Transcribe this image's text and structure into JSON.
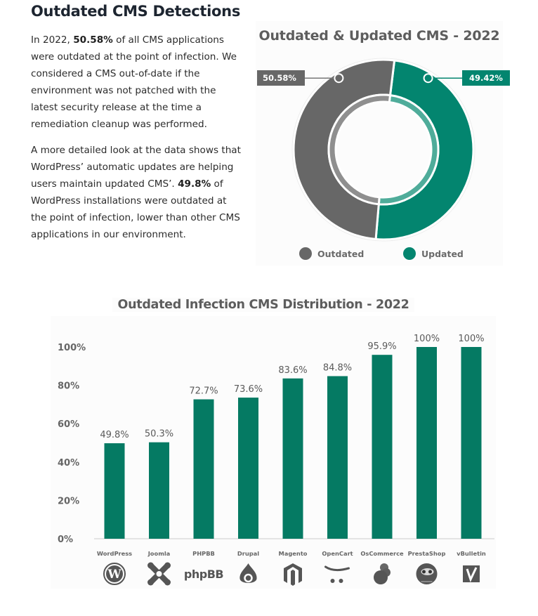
{
  "article": {
    "heading": "Outdated CMS Detections",
    "para1": {
      "pre": "In 2022, ",
      "bold": "50.58%",
      "post": " of all CMS applications were outdated at the point of infection. We considered a CMS out-of-date if the environment was not patched with the latest security release at the time a remediation cleanup was performed."
    },
    "para2": {
      "pre": "A more detailed look at the data shows that WordPress’ automatic updates are helping users maintain updated CMS’. ",
      "bold": "49.8%",
      "post": " of WordPress installations were outdated at the point of infection, lower than other CMS applications in our environment."
    }
  },
  "colors": {
    "outdated": "#676767",
    "outdated_inner": "#8f8f8f",
    "updated": "#03856f",
    "updated_inner": "#4fac9a",
    "bar": "#057a63",
    "axis_text": "#666666"
  },
  "chart_data": [
    {
      "type": "pie",
      "variant": "donut",
      "title": "Outdated & Updated CMS - 2022",
      "labels": [
        "Outdated",
        "Updated"
      ],
      "values": [
        50.58,
        49.42
      ],
      "value_labels": [
        "50.58%",
        "49.42%"
      ],
      "legend": "bottom"
    },
    {
      "type": "bar",
      "title": "Outdated Infection CMS Distribution - 2022",
      "categories": [
        "WordPress",
        "Joomla",
        "PHPBB",
        "Drupal",
        "Magento",
        "OpenCart",
        "OsCommerce",
        "PrestaShop",
        "vBulletin"
      ],
      "values": [
        49.8,
        50.3,
        72.7,
        73.6,
        83.6,
        84.8,
        95.9,
        100,
        100
      ],
      "data_labels": [
        "49.8%",
        "50.3%",
        "72.7%",
        "73.6%",
        "83.6%",
        "84.8%",
        "95.9%",
        "100%",
        "100%"
      ],
      "category_icons": [
        "wordpress-logo",
        "joomla-logo",
        "phpbb-logo",
        "drupal-logo",
        "magento-logo",
        "opencart-logo",
        "oscommerce-logo",
        "prestashop-logo",
        "vbulletin-logo"
      ],
      "xlabel": "",
      "ylabel": "",
      "yticks": [
        "0%",
        "20%",
        "40%",
        "60%",
        "80%",
        "100%"
      ],
      "ylim": [
        0,
        100
      ],
      "grid": false,
      "legend": "none"
    }
  ]
}
